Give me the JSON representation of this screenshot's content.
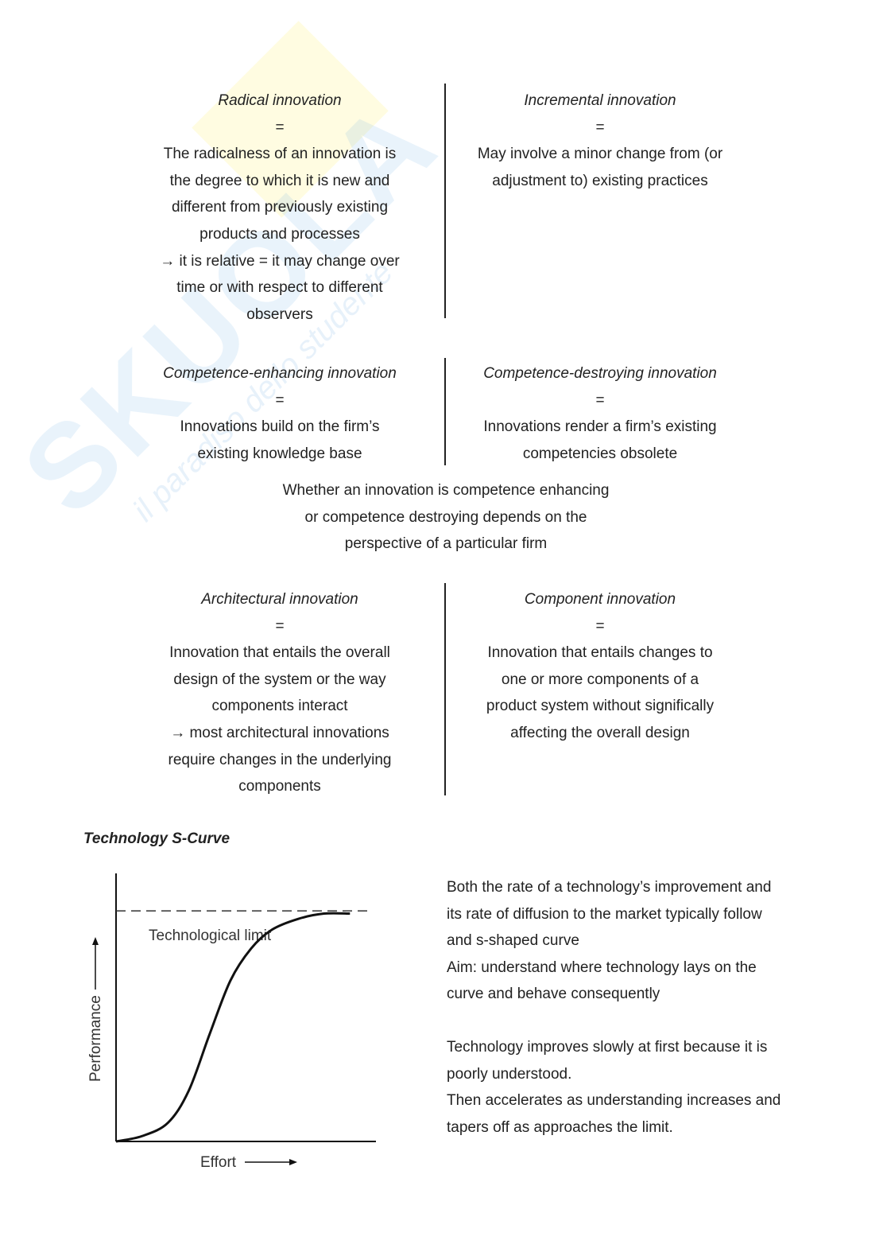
{
  "watermark": {
    "logo": "SKUOLA.net",
    "tagline": "il paradiso dello studente"
  },
  "blocks": {
    "radical": {
      "title": "Radical innovation",
      "eq": "=",
      "lines": [
        "The radicalness of an innovation is",
        "the degree to which it is new and",
        "different from previously existing",
        "products and processes",
        "→ it is relative = it may change over",
        "time or with respect to different",
        "observers"
      ]
    },
    "incremental": {
      "title": "Incremental innovation",
      "eq": "=",
      "lines": [
        "May involve a minor change from (or",
        "adjustment to) existing practices"
      ]
    },
    "enhancing": {
      "title": "Competence-enhancing innovation",
      "eq": "=",
      "lines": [
        "Innovations build on the firm’s",
        "existing knowledge base"
      ]
    },
    "destroying": {
      "title": "Competence-destroying innovation",
      "eq": "=",
      "lines": [
        "Innovations render a firm’s existing",
        "competencies obsolete"
      ]
    },
    "competence_note": {
      "lines": [
        "Whether an innovation is competence enhancing",
        "or competence destroying depends on the",
        "perspective of a particular firm"
      ]
    },
    "architectural": {
      "title": "Architectural innovation",
      "eq": "=",
      "lines": [
        "Innovation that entails the overall",
        "design of the system or the way",
        "components interact",
        "→ most architectural innovations",
        "require changes in the underlying",
        "components"
      ]
    },
    "component": {
      "title": "Component innovation",
      "eq": "=",
      "lines": [
        "Innovation that entails changes to",
        "one or more components of a",
        "product system without significally",
        "affecting the overall design"
      ]
    }
  },
  "scurve": {
    "heading": "Technology S-Curve",
    "paragraphs": [
      [
        "Both the rate of a technology’s improvement and",
        "its rate of diffusion to the market typically follow",
        "and s-shaped curve",
        "Aim: understand where technology lays on the",
        "curve and behave consequently"
      ],
      [
        "Technology improves slowly at first because it is",
        "poorly understood.",
        "Then accelerates as understanding increases and",
        "tapers off as approaches the limit."
      ]
    ]
  },
  "chart_data": {
    "type": "line",
    "title": "",
    "xlabel": "Effort",
    "ylabel": "Performance",
    "annotation": "Technological limit",
    "limit": 0.86,
    "xlim": [
      0,
      1
    ],
    "ylim": [
      0,
      1
    ],
    "grid": false,
    "series": [
      {
        "x": [
          0,
          0.1,
          0.2,
          0.28,
          0.36,
          0.44,
          0.52,
          0.6,
          0.7,
          0.8,
          0.9
        ],
        "y": [
          0,
          0.02,
          0.07,
          0.19,
          0.4,
          0.6,
          0.72,
          0.79,
          0.83,
          0.85,
          0.85
        ]
      }
    ]
  }
}
